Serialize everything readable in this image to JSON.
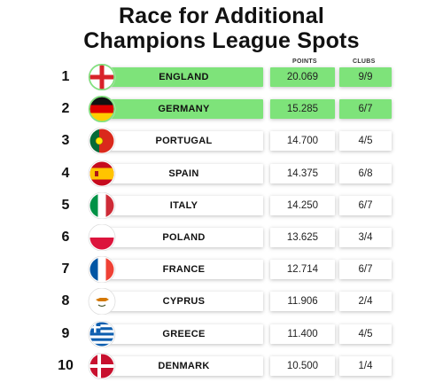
{
  "title_line1": "Race for Additional",
  "title_line2": "Champions League Spots",
  "headers": {
    "points": "POINTS",
    "clubs": "CLUBS"
  },
  "rows": [
    {
      "rank": "1",
      "country": "ENGLAND",
      "points": "20.069",
      "clubs": "9/9",
      "highlight": true,
      "flag_icon": "england-flag-icon"
    },
    {
      "rank": "2",
      "country": "GERMANY",
      "points": "15.285",
      "clubs": "6/7",
      "highlight": true,
      "flag_icon": "germany-flag-icon"
    },
    {
      "rank": "3",
      "country": "PORTUGAL",
      "points": "14.700",
      "clubs": "4/5",
      "highlight": false,
      "flag_icon": "portugal-flag-icon"
    },
    {
      "rank": "4",
      "country": "SPAIN",
      "points": "14.375",
      "clubs": "6/8",
      "highlight": false,
      "flag_icon": "spain-flag-icon"
    },
    {
      "rank": "5",
      "country": "ITALY",
      "points": "14.250",
      "clubs": "6/7",
      "highlight": false,
      "flag_icon": "italy-flag-icon"
    },
    {
      "rank": "6",
      "country": "POLAND",
      "points": "13.625",
      "clubs": "3/4",
      "highlight": false,
      "flag_icon": "poland-flag-icon"
    },
    {
      "rank": "7",
      "country": "FRANCE",
      "points": "12.714",
      "clubs": "6/7",
      "highlight": false,
      "flag_icon": "france-flag-icon"
    },
    {
      "rank": "8",
      "country": "CYPRUS",
      "points": "11.906",
      "clubs": "2/4",
      "highlight": false,
      "flag_icon": "cyprus-flag-icon"
    },
    {
      "rank": "9",
      "country": "GREECE",
      "points": "11.400",
      "clubs": "4/5",
      "highlight": false,
      "flag_icon": "greece-flag-icon"
    },
    {
      "rank": "10",
      "country": "DENMARK",
      "points": "10.500",
      "clubs": "1/4",
      "highlight": false,
      "flag_icon": "denmark-flag-icon"
    }
  ],
  "colors": {
    "highlight": "#7ee37a",
    "text": "#111111"
  }
}
